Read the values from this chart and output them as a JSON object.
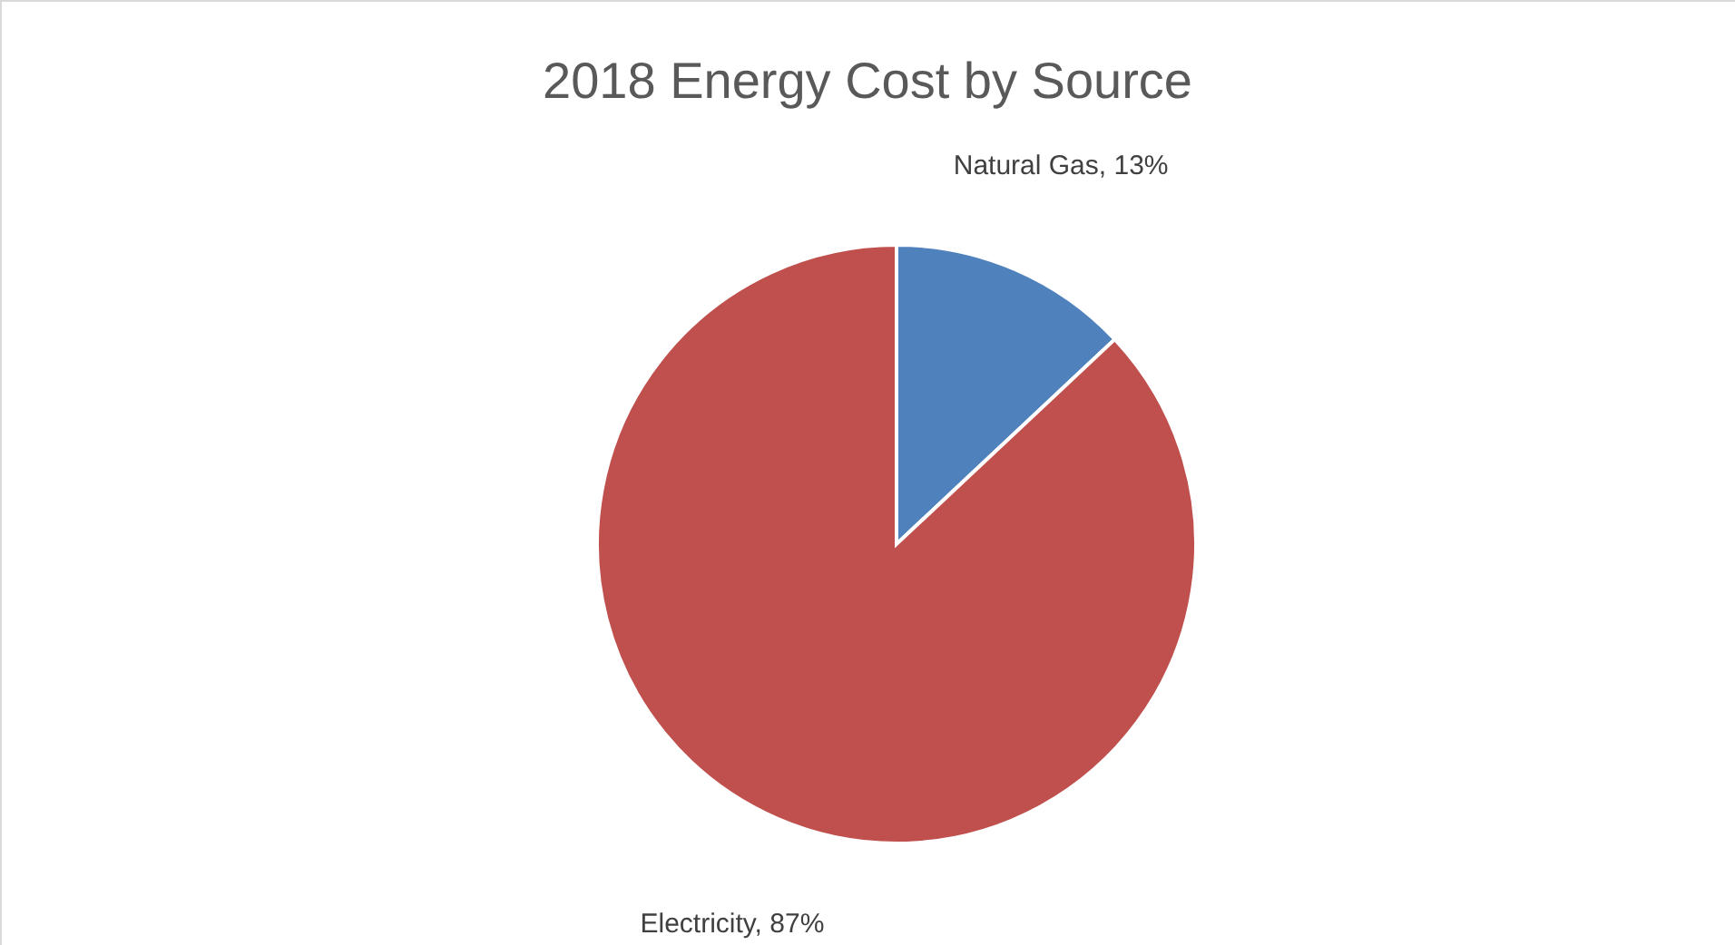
{
  "chart_data": {
    "type": "pie",
    "title": "2018 Energy Cost by Source",
    "categories": [
      "Natural Gas",
      "Electricity"
    ],
    "values": [
      13,
      87
    ],
    "colors": [
      "#4f81bd",
      "#c0504d"
    ],
    "value_labels": [
      "13%",
      "87%"
    ],
    "legend": false
  }
}
